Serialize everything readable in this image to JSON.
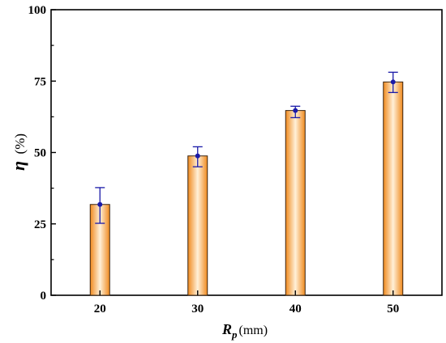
{
  "chart_data": {
    "type": "bar",
    "categories": [
      "20",
      "30",
      "40",
      "50"
    ],
    "values": [
      31.8,
      48.8,
      64.7,
      74.7
    ],
    "error_upper": [
      37.7,
      52.0,
      66.2,
      78.1
    ],
    "error_lower": [
      25.2,
      45.0,
      62.2,
      71.0
    ],
    "ylim": [
      0,
      100
    ],
    "yticks": [
      "0",
      "25",
      "50",
      "75",
      "100"
    ],
    "ylabel_main": "η",
    "ylabel_unit": "(%)",
    "xlabel_main": "R",
    "xlabel_sub": "p",
    "xlabel_unit": "(mm)",
    "grid": false,
    "bar_colors": {
      "edge": "#f08a1e",
      "center": "#fff0d8",
      "outline": "#3a2410"
    },
    "error_color": "#1a1aa8"
  }
}
